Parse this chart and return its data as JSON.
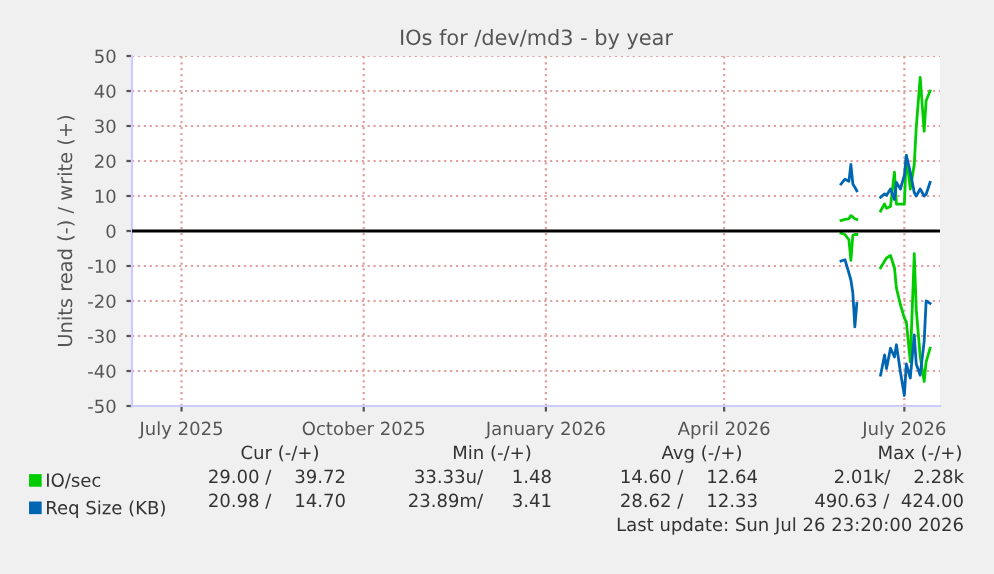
{
  "chart_data": {
    "type": "line",
    "title": "IOs for /dev/md3 - by year",
    "ylabel": "Units read (-) / write (+)",
    "x": [
      "2026-05-30",
      "2026-06-01",
      "2026-06-03",
      "2026-06-04",
      "2026-06-05",
      "2026-06-06",
      "2026-06-07",
      "2026-06-12",
      "2026-06-19",
      "2026-06-21",
      "2026-06-22",
      "2026-06-24",
      "2026-06-26",
      "2026-06-27",
      "2026-06-29",
      "2026-07-01",
      "2026-07-02",
      "2026-07-04",
      "2026-07-06",
      "2026-07-07",
      "2026-07-09",
      "2026-07-11",
      "2026-07-12",
      "2026-07-14"
    ],
    "series": [
      {
        "name": "IO/sec",
        "color": "#00cc00",
        "values": [
          3,
          3.3,
          3.5,
          4.4,
          4,
          3.5,
          3.3,
          null,
          5.7,
          7.7,
          6.5,
          7,
          16.8,
          7.7,
          7.7,
          7.7,
          21.6,
          12,
          19,
          29.5,
          43.9,
          28.5,
          37.2,
          40
        ]
      },
      {
        "color": "#00cc00",
        "values": [
          -0.6,
          -1,
          -2.5,
          -8.4,
          -1.2,
          -1,
          -1,
          null,
          -10.5,
          -8.6,
          -7.7,
          -7,
          -10.5,
          -16.3,
          -21,
          -24.9,
          -25.9,
          -37.4,
          -6.5,
          -22.4,
          -35.8,
          -43,
          -37.4,
          -33.5
        ]
      },
      {
        "name": "Req Size (KB)",
        "color": "#0066b3",
        "values": [
          13.4,
          14.8,
          14.2,
          19,
          13.4,
          12.5,
          11.5,
          null,
          9.6,
          10.6,
          10.2,
          12,
          9,
          13.9,
          12,
          15.9,
          21.6,
          16.8,
          11,
          10,
          12,
          10,
          10.5,
          13.9
        ]
      },
      {
        "color": "#0066b3",
        "values": [
          -8.6,
          -8.2,
          -12,
          -14,
          -17.8,
          -27.4,
          -20.7,
          null,
          -41.2,
          -35.4,
          -39.3,
          -33.5,
          -36,
          -32.5,
          -40.2,
          -47,
          -38,
          -42,
          -29.7,
          -38,
          -41.2,
          -31.6,
          -20,
          -20.7
        ]
      }
    ],
    "xlim": [
      "2025-06-06",
      "2026-07-19"
    ],
    "xticks": [
      {
        "value": "2025-07-01",
        "label": "July 2025"
      },
      {
        "value": "2025-10-01",
        "label": "October 2025"
      },
      {
        "value": "2026-01-01",
        "label": "January 2026"
      },
      {
        "value": "2026-04-01",
        "label": "April 2026"
      },
      {
        "value": "2026-07-01",
        "label": "July 2026"
      }
    ],
    "ylim": [
      -50,
      50
    ],
    "yticks": [
      -50,
      -40,
      -30,
      -20,
      -10,
      0,
      10,
      20,
      30,
      40,
      50
    ],
    "ref_lines": [
      {
        "axis": "y",
        "value": 0,
        "color": "#000000"
      }
    ],
    "grid": true,
    "legend": "bottom left",
    "marker": "none",
    "line_style": "solid",
    "annotations": [
      "Cur (-/+)",
      "Min (-/+)",
      "Avg (-/+)",
      "Max (-/+)",
      "29.00 /    39.72",
      "33.33u/     1.48",
      "14.60 /    12.64",
      "2.01k/    2.28k",
      "20.98 /    14.70",
      "23.89m/     3.41",
      "28.62 /    12.33",
      "490.63 /  424.00",
      "Last update: Sun Jul 26 23:20:00 2026"
    ]
  }
}
